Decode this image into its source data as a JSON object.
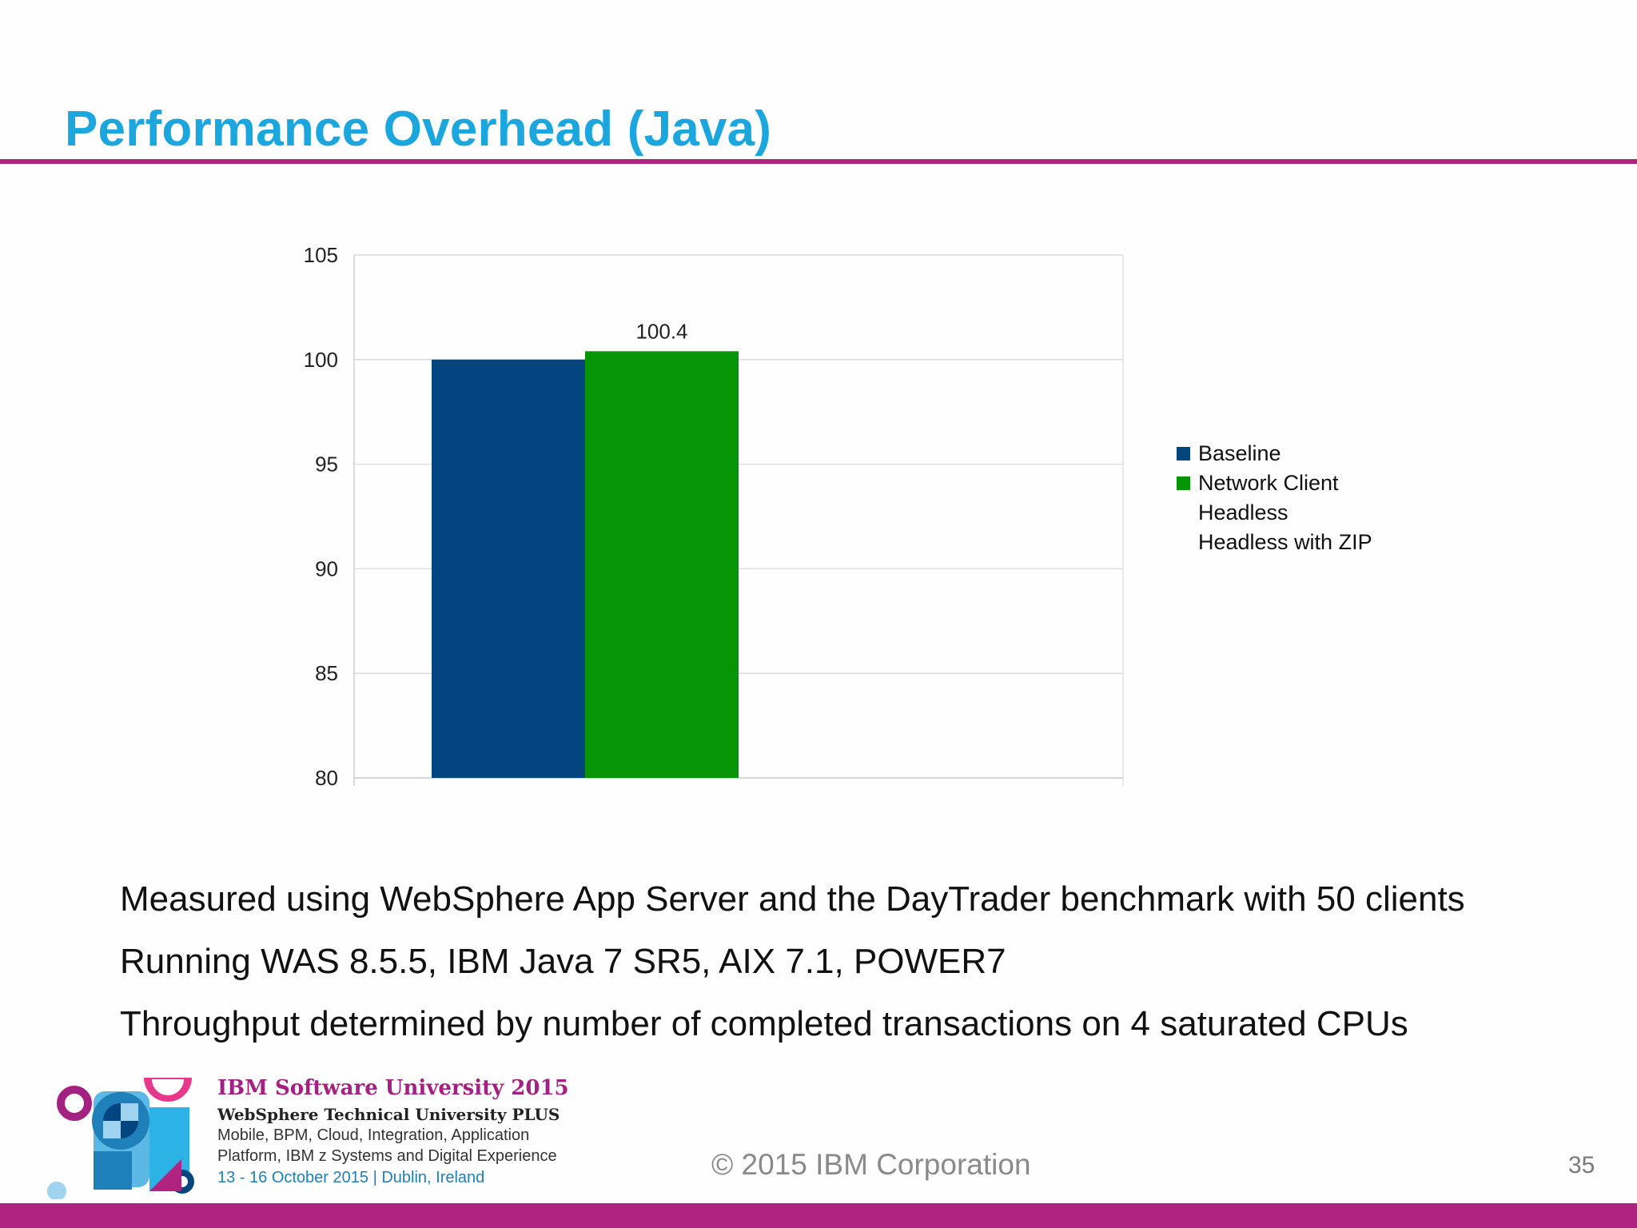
{
  "slide": {
    "title": "Performance Overhead (Java)",
    "bullets": [
      "Measured using WebSphere App Server and the DayTrader benchmark with 50 clients",
      "Running WAS 8.5.5, IBM Java 7 SR5, AIX 7.1, POWER7",
      "Throughput determined by number of completed transactions on 4 saturated CPUs"
    ],
    "footer": {
      "copyright": "© 2015 IBM Corporation",
      "page_number": "35",
      "event_title": "IBM Software University 2015",
      "event_subtitle": "WebSphere Technical University PLUS",
      "event_topics_1": "Mobile, BPM, Cloud, Integration, Application",
      "event_topics_2": "Platform, IBM z Systems and Digital Experience",
      "event_date_place": "13 - 16 October 2015 | Dublin, Ireland",
      "logo_icon": "ibm-software-university-logo"
    },
    "colors": {
      "title": "#1ba6dd",
      "rule": "#b0237f",
      "baseline": "#02457f",
      "network_client": "#069506"
    }
  },
  "chart_data": {
    "type": "bar",
    "title": "",
    "xlabel": "",
    "ylabel": "",
    "ylim": [
      80,
      105
    ],
    "yticks": [
      80,
      85,
      90,
      95,
      100,
      105
    ],
    "grid": true,
    "legend_position": "right",
    "categories": [
      ""
    ],
    "series": [
      {
        "name": "Baseline",
        "values": [
          100
        ],
        "color": "#02457f",
        "label": ""
      },
      {
        "name": "Network Client",
        "values": [
          100.4
        ],
        "color": "#069506",
        "label": "100.4"
      },
      {
        "name": "Headless",
        "values": [
          null
        ],
        "color": null,
        "label": ""
      },
      {
        "name": "Headless with ZIP",
        "values": [
          null
        ],
        "color": null,
        "label": ""
      }
    ]
  }
}
